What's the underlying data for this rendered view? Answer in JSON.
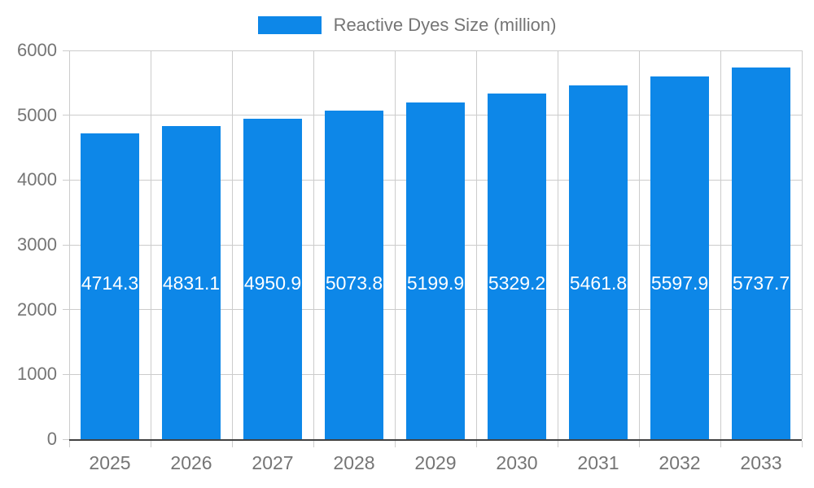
{
  "chart_data": {
    "type": "bar",
    "title": "",
    "series_name": "Reactive Dyes Size (million)",
    "categories": [
      "2025",
      "2026",
      "2027",
      "2028",
      "2029",
      "2030",
      "2031",
      "2032",
      "2033"
    ],
    "values": [
      4714.3,
      4831.1,
      4950.9,
      5073.8,
      5199.9,
      5329.2,
      5461.8,
      5597.9,
      5737.7
    ],
    "xlabel": "",
    "ylabel": "",
    "ylim": [
      0,
      6000
    ],
    "yticks": [
      0,
      1000,
      2000,
      3000,
      4000,
      5000,
      6000
    ],
    "grid": true,
    "legend_position": "top",
    "colors": {
      "bar": "#0d87e8",
      "value_label": "#ffffff",
      "axis_text": "#757575",
      "gridline": "#cccccc",
      "baseline": "#424242",
      "background": "#ffffff"
    }
  }
}
